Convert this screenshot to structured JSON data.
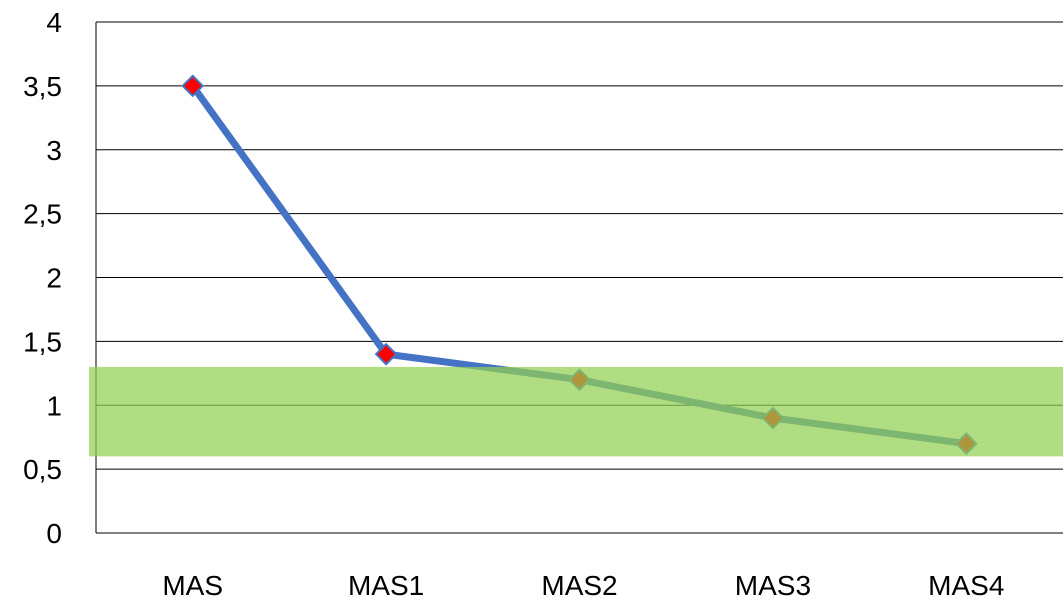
{
  "chart_data": {
    "type": "line",
    "title": "",
    "xlabel": "",
    "ylabel": "",
    "categories": [
      "MAS",
      "MAS1",
      "MAS2",
      "MAS3",
      "MAS4"
    ],
    "series": [
      {
        "values": [
          3.5,
          1.4,
          1.2,
          0.9,
          0.7
        ]
      }
    ],
    "ylim": [
      0,
      4
    ],
    "y_ticks": [
      "0",
      "0,5",
      "1",
      "1,5",
      "2",
      "2,5",
      "3",
      "3,5",
      "4"
    ],
    "y_tick_values": [
      0,
      0.5,
      1,
      1.5,
      2,
      2.5,
      3,
      3.5,
      4
    ],
    "grid": true,
    "legend": "none",
    "highlight_band": {
      "y_from": 0.6,
      "y_to": 1.3,
      "color": "#92d050"
    },
    "colors": {
      "line": "#4472c4",
      "marker_fill": "#ff0000",
      "band": "#92d050",
      "gridline": "#000000"
    }
  }
}
